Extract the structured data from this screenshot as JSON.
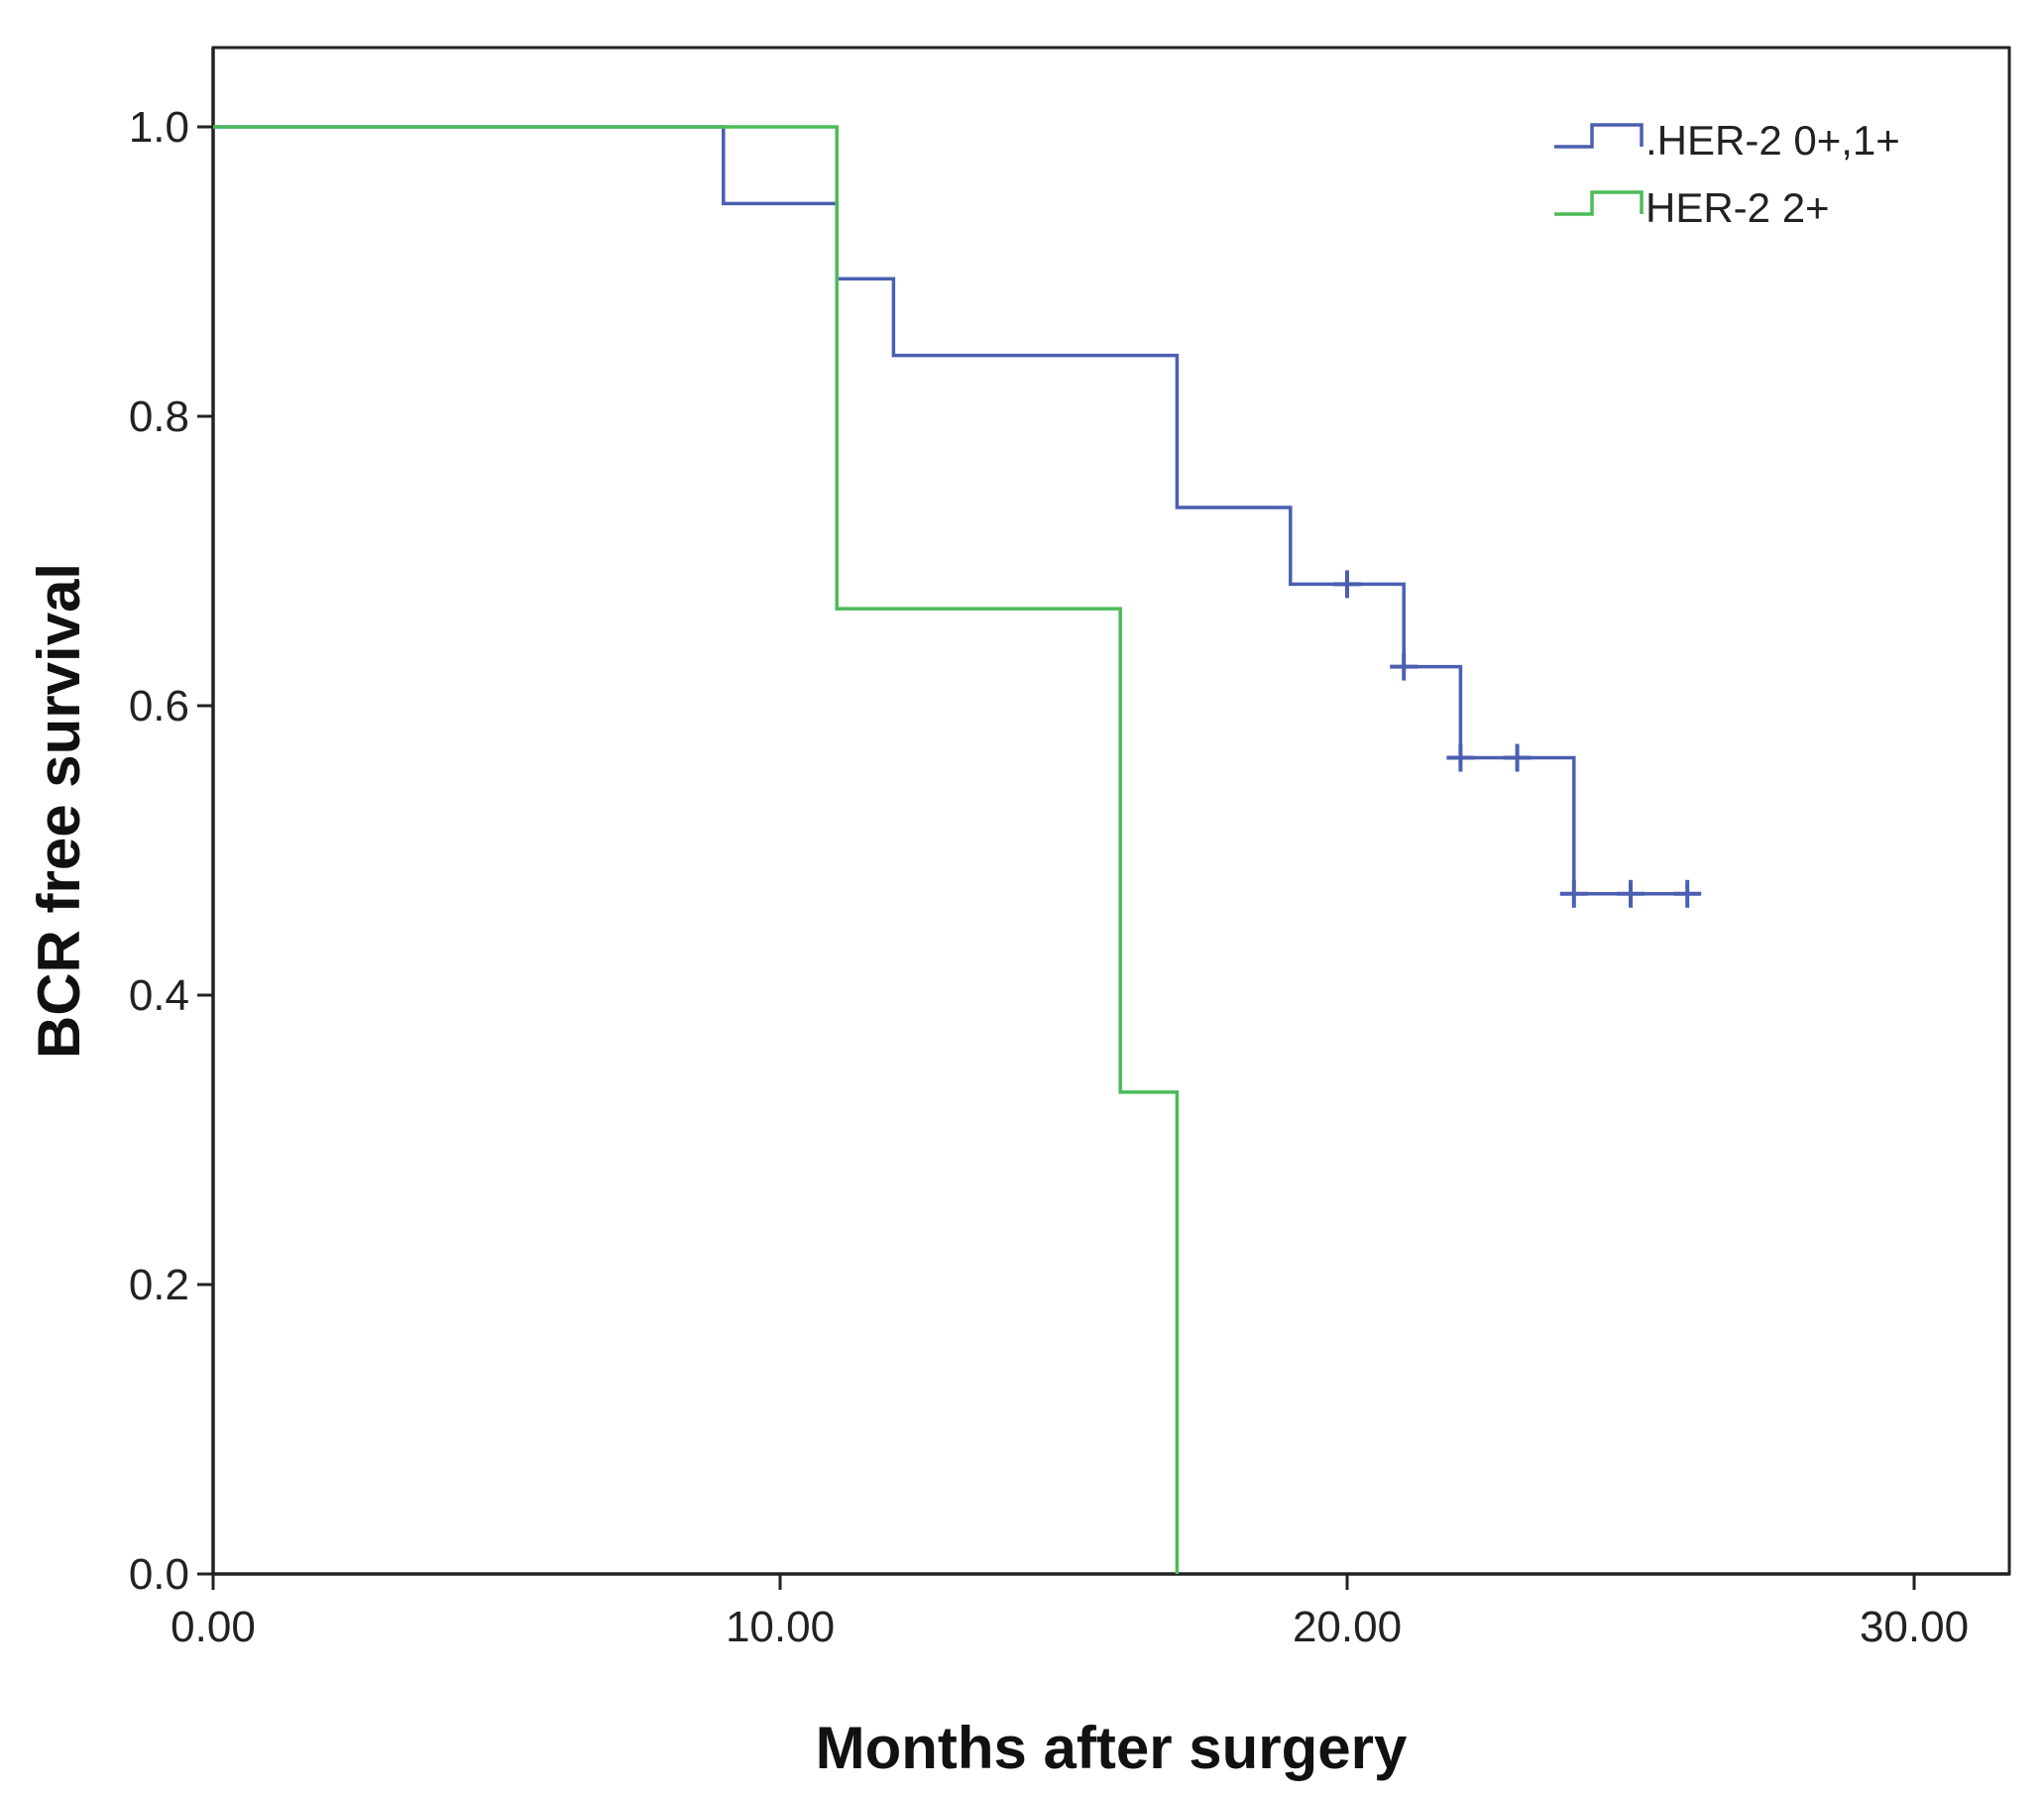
{
  "chart_data": {
    "type": "line",
    "title": "",
    "xlabel": "Months after surgery",
    "ylabel": "BCR free survival",
    "xlim": [
      0,
      31.5
    ],
    "ylim": [
      0,
      1.05
    ],
    "x_ticks": [
      0,
      10,
      20,
      30
    ],
    "x_tick_labels": [
      "0.00",
      "10.00",
      "20.00",
      "30.00"
    ],
    "y_ticks": [
      0,
      0.2,
      0.4,
      0.6,
      0.8,
      1.0
    ],
    "y_tick_labels": [
      "0.0",
      "0.2",
      "0.4",
      "0.6",
      "0.8",
      "1.0"
    ],
    "grid": false,
    "legend_position": "top-right",
    "step": true,
    "series": [
      {
        "name": ".HER-2 0+,1+",
        "color": "#4a5fb0",
        "x": [
          0,
          9,
          11,
          12,
          17,
          19,
          21,
          22,
          24,
          26
        ],
        "y": [
          1.0,
          0.947,
          0.895,
          0.842,
          0.737,
          0.684,
          0.627,
          0.564,
          0.47,
          0.47
        ],
        "censored": [
          {
            "x": 20,
            "y": 0.684
          },
          {
            "x": 21,
            "y": 0.627
          },
          {
            "x": 22,
            "y": 0.564
          },
          {
            "x": 23,
            "y": 0.564
          },
          {
            "x": 24,
            "y": 0.47
          },
          {
            "x": 25,
            "y": 0.47
          },
          {
            "x": 26,
            "y": 0.47
          }
        ]
      },
      {
        "name": "HER-2 2+",
        "color": "#4cbb5a",
        "x": [
          0,
          11,
          16,
          17
        ],
        "y": [
          1.0,
          0.667,
          0.333,
          0.0
        ],
        "censored": []
      }
    ]
  }
}
